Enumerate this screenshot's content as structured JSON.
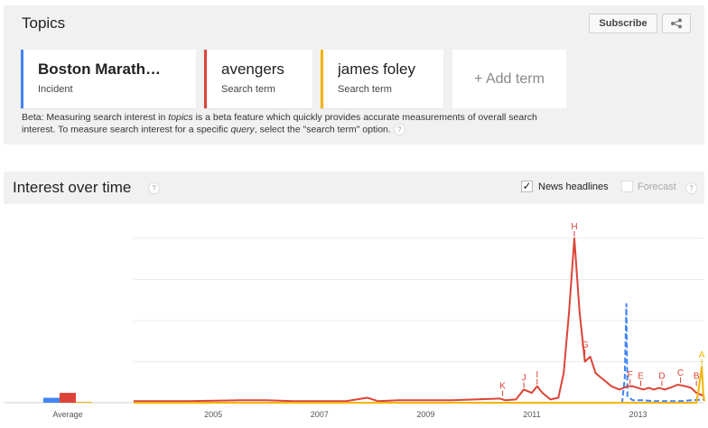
{
  "topics": {
    "title": "Topics",
    "subscribe_label": "Subscribe",
    "share_icon": "share-icon",
    "terms": [
      {
        "name": "Boston Marath…",
        "type": "Incident",
        "color": "#4285f4"
      },
      {
        "name": "avengers",
        "type": "Search term",
        "color": "#db4437"
      },
      {
        "name": "james foley",
        "type": "Search term",
        "color": "#f4b400"
      }
    ],
    "add_term_label": "+ Add term",
    "beta_note": {
      "part1": "Beta: Measuring search interest in ",
      "topics_word": "topics",
      "part2": " is a beta feature which quickly provides accurate measurements of overall search interest. To measure search interest for a specific ",
      "query_word": "query",
      "part3": ", select the \"search term\" option."
    },
    "help_label": "?"
  },
  "interest": {
    "title": "Interest over time",
    "help_label": "?",
    "news_headlines_label": "News headlines",
    "news_headlines_checked": true,
    "news_check_glyph": "✓",
    "forecast_label": "Forecast",
    "forecast_checked": false
  },
  "chart_data": {
    "type": "line",
    "x_ticks": [
      "2005",
      "2007",
      "2009",
      "2011",
      "2013"
    ],
    "average_label": "Average",
    "average_values": [
      {
        "series": "Boston Marath…",
        "value": 3,
        "color": "#4285f4"
      },
      {
        "series": "avengers",
        "value": 6,
        "color": "#db4437"
      },
      {
        "series": "james foley",
        "value": 0.5,
        "color": "#f4b400"
      }
    ],
    "ylim": [
      0,
      100
    ],
    "x_range": [
      2004.0,
      2014.75
    ],
    "grid": true,
    "series": [
      {
        "name": "Boston Marath…",
        "color": "#4285f4",
        "dashed": true,
        "points": [
          [
            2004.0,
            0
          ],
          [
            2013.2,
            0
          ],
          [
            2013.25,
            15
          ],
          [
            2013.28,
            60
          ],
          [
            2013.3,
            4
          ],
          [
            2013.4,
            1.5
          ],
          [
            2013.6,
            1.5
          ],
          [
            2013.8,
            1
          ],
          [
            2014.3,
            1
          ],
          [
            2014.5,
            1.5
          ],
          [
            2014.75,
            2
          ]
        ]
      },
      {
        "name": "avengers",
        "color": "#db4437",
        "dashed": false,
        "points": [
          [
            2004.0,
            1
          ],
          [
            2005.0,
            1
          ],
          [
            2006.0,
            1.5
          ],
          [
            2006.5,
            1.5
          ],
          [
            2007.0,
            1
          ],
          [
            2008.0,
            1
          ],
          [
            2008.4,
            3
          ],
          [
            2008.6,
            1
          ],
          [
            2009.0,
            1.5
          ],
          [
            2010.0,
            1.5
          ],
          [
            2010.9,
            2.5
          ],
          [
            2011.0,
            1.5
          ],
          [
            2011.2,
            2
          ],
          [
            2011.35,
            8
          ],
          [
            2011.5,
            6
          ],
          [
            2011.6,
            10
          ],
          [
            2011.7,
            6
          ],
          [
            2011.85,
            2
          ],
          [
            2012.0,
            3
          ],
          [
            2012.1,
            18
          ],
          [
            2012.2,
            55
          ],
          [
            2012.3,
            100
          ],
          [
            2012.4,
            55
          ],
          [
            2012.5,
            25
          ],
          [
            2012.6,
            28
          ],
          [
            2012.7,
            18
          ],
          [
            2012.85,
            14
          ],
          [
            2013.0,
            10
          ],
          [
            2013.15,
            8
          ],
          [
            2013.3,
            10
          ],
          [
            2013.4,
            10
          ],
          [
            2013.5,
            9
          ],
          [
            2013.6,
            8
          ],
          [
            2013.7,
            9
          ],
          [
            2013.8,
            8
          ],
          [
            2013.9,
            9
          ],
          [
            2014.0,
            8
          ],
          [
            2014.1,
            9
          ],
          [
            2014.25,
            11
          ],
          [
            2014.4,
            10
          ],
          [
            2014.5,
            9
          ],
          [
            2014.6,
            6
          ],
          [
            2014.75,
            4
          ]
        ]
      },
      {
        "name": "james foley",
        "color": "#f4b400",
        "dashed": false,
        "points": [
          [
            2004.0,
            0
          ],
          [
            2014.6,
            0
          ],
          [
            2014.65,
            10
          ],
          [
            2014.7,
            22
          ],
          [
            2014.73,
            5
          ],
          [
            2014.75,
            1
          ]
        ]
      }
    ],
    "annotations": [
      {
        "label": "K",
        "x": 2010.95,
        "y": 3
      },
      {
        "label": "J",
        "x": 2011.35,
        "y": 8
      },
      {
        "label": "I",
        "x": 2011.6,
        "y": 10
      },
      {
        "label": "H",
        "x": 2012.3,
        "y": 100
      },
      {
        "label": "G",
        "x": 2012.5,
        "y": 28
      },
      {
        "label": "F",
        "x": 2013.35,
        "y": 10
      },
      {
        "label": "E",
        "x": 2013.55,
        "y": 9
      },
      {
        "label": "D",
        "x": 2013.95,
        "y": 9
      },
      {
        "label": "C",
        "x": 2014.3,
        "y": 11
      },
      {
        "label": "B",
        "x": 2014.6,
        "y": 9
      },
      {
        "label": "A",
        "x": 2014.7,
        "y": 22
      }
    ]
  }
}
